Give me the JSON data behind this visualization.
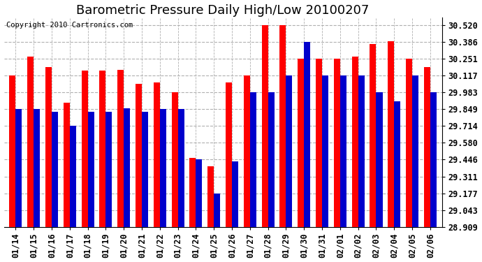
{
  "title": "Barometric Pressure Daily High/Low 20100207",
  "copyright": "Copyright 2010 Cartronics.com",
  "dates": [
    "01/14",
    "01/15",
    "01/16",
    "01/17",
    "01/18",
    "01/19",
    "01/20",
    "01/21",
    "01/22",
    "01/23",
    "01/24",
    "01/25",
    "01/26",
    "01/27",
    "01/28",
    "01/29",
    "01/30",
    "01/31",
    "02/01",
    "02/02",
    "02/03",
    "02/04",
    "02/05",
    "02/06"
  ],
  "high": [
    30.117,
    30.268,
    30.185,
    29.9,
    30.155,
    30.155,
    30.16,
    30.05,
    30.06,
    29.985,
    29.46,
    29.395,
    30.06,
    30.117,
    30.52,
    30.52,
    30.251,
    30.251,
    30.251,
    30.268,
    30.37,
    30.39,
    30.251,
    30.185
  ],
  "low": [
    29.849,
    29.849,
    29.83,
    29.714,
    29.83,
    29.83,
    29.855,
    29.83,
    29.849,
    29.849,
    29.446,
    29.177,
    29.43,
    29.983,
    29.985,
    30.117,
    30.386,
    30.117,
    30.117,
    30.117,
    29.983,
    29.91,
    30.117,
    29.983
  ],
  "high_color": "#ff0000",
  "low_color": "#0000cc",
  "background_color": "#ffffff",
  "grid_color": "#b0b0b0",
  "yticks": [
    28.909,
    29.043,
    29.177,
    29.311,
    29.446,
    29.58,
    29.714,
    29.849,
    29.983,
    30.117,
    30.251,
    30.386,
    30.52
  ],
  "ymin": 28.909,
  "ymax": 30.58,
  "title_fontsize": 13,
  "tick_fontsize": 8.5,
  "copyright_fontsize": 7.5,
  "bar_width": 0.35
}
